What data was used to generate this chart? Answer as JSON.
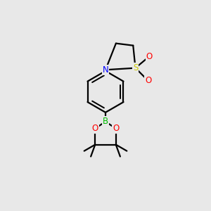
{
  "bg_color": "#e8e8e8",
  "atom_colors": {
    "B": "#00bb00",
    "N": "#0000ff",
    "O": "#ff0000",
    "S": "#cccc00",
    "C": "#000000"
  },
  "bond_color": "#000000",
  "bond_width": 1.6,
  "figsize": [
    3.0,
    3.0
  ],
  "dpi": 100,
  "xlim": [
    0.25,
    0.75
  ],
  "ylim": [
    0.05,
    0.95
  ]
}
